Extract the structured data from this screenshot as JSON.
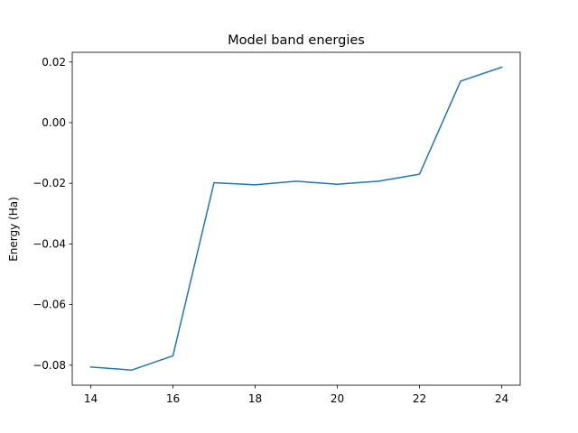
{
  "chart_data": {
    "type": "line",
    "title": "Model band energies",
    "xlabel": "",
    "ylabel": "Energy (Ha)",
    "xlim": [
      13.55,
      24.45
    ],
    "ylim": [
      -0.0866,
      0.0232
    ],
    "xticks": [
      14,
      16,
      18,
      20,
      22,
      24
    ],
    "xtick_labels": [
      "14",
      "16",
      "18",
      "20",
      "22",
      "24"
    ],
    "yticks": [
      -0.08,
      -0.06,
      -0.04,
      -0.02,
      0.0,
      0.02
    ],
    "ytick_labels": [
      "−0.08",
      "−0.06",
      "−0.04",
      "−0.02",
      "0.00",
      "0.02"
    ],
    "grid": false,
    "legend": "none",
    "series": [
      {
        "color": "#1f77b4",
        "x": [
          14,
          15,
          16,
          17,
          18,
          19,
          20,
          21,
          22,
          23,
          24
        ],
        "y": [
          -0.0806,
          -0.0816,
          -0.0769,
          -0.0198,
          -0.0205,
          -0.0193,
          -0.0203,
          -0.0193,
          -0.017,
          0.0137,
          0.0183
        ]
      }
    ]
  }
}
